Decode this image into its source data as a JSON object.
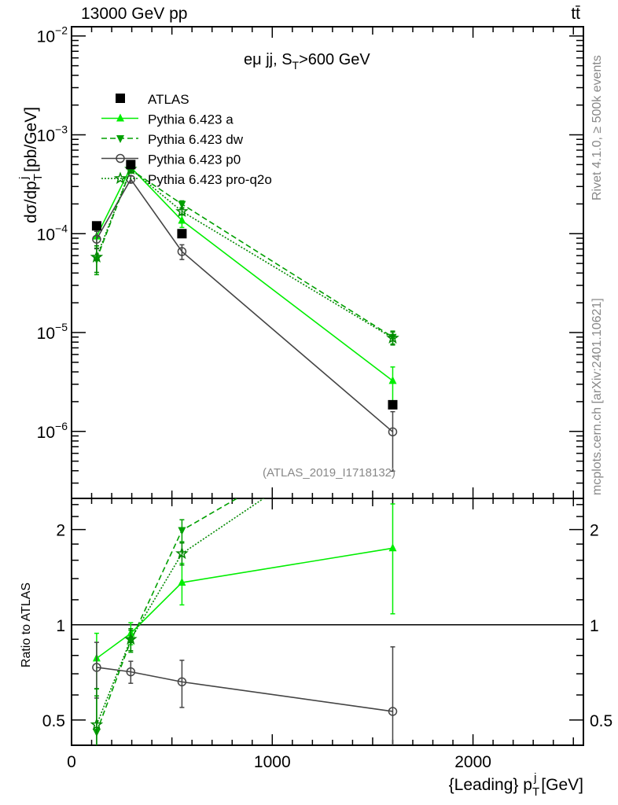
{
  "header": {
    "left": "13000 GeV pp",
    "right": "tt̄"
  },
  "side_text": {
    "top": "Rivet 4.1.0, ≥ 500k events",
    "bottom": "mcplots.cern.ch [arXiv:2401.10621]"
  },
  "chart_data": {
    "type": "line",
    "title": "eμ jj, S_T>600 GeV",
    "title_parts": {
      "main": "eμ jj, S",
      "sub": "T",
      "rest": ">600 GeV"
    },
    "analysis_label": "(ATLAS_2019_I1718132)",
    "ylabel_parts": {
      "main": "dσ/dp",
      "sub": "T",
      "sup": "j",
      "rest": " [pb/GeV]"
    },
    "ratio_ylabel": "Ratio to ATLAS",
    "xlabel_parts": {
      "main": "{Leading} p",
      "sub": "T",
      "sup": "j",
      "rest": " [GeV]"
    },
    "xlim": [
      0,
      2550
    ],
    "ylim": [
      2.1e-07,
      0.0124
    ],
    "yscale": "log",
    "ratio_ylim": [
      0.416,
      2.51
    ],
    "ratio_yscale": "log",
    "x": [
      125,
      295,
      550,
      1600
    ],
    "x_ticks": [
      0,
      1000,
      2000
    ],
    "x_tick_labels": [
      "0",
      "1000",
      "2000"
    ],
    "y_ticks": [
      0.01,
      0.001,
      0.0001,
      1e-05,
      1e-06
    ],
    "y_tick_labels": [
      {
        "b": "10",
        "e": "−2"
      },
      {
        "b": "10",
        "e": "−3"
      },
      {
        "b": "10",
        "e": "−4"
      },
      {
        "b": "10",
        "e": "−5"
      },
      {
        "b": "10",
        "e": "−6"
      }
    ],
    "ratio_y_ticks": [
      0.5,
      1,
      2
    ],
    "ratio_y_tick_labels": [
      "0.5",
      "1",
      "2"
    ],
    "legend_position": "top-left",
    "data": {
      "name": "ATLAS",
      "values": [
        0.00012,
        0.0005,
        0.0001,
        1.86e-06
      ],
      "color": "#000000"
    },
    "series": [
      {
        "name": "Pythia 6.423 a",
        "values": [
          9.4e-05,
          0.00047,
          0.000136,
          3.25e-06
        ],
        "rel_err": [
          0.2,
          0.08,
          0.15,
          0.38
        ],
        "color": "#00ee00",
        "dash": "",
        "marker": "triangle-up"
      },
      {
        "name": "Pythia 6.423 dw",
        "values": [
          5.5e-05,
          0.000445,
          0.000199,
          9e-06
        ],
        "rel_err": [
          0.3,
          0.08,
          0.08,
          0.15
        ],
        "color": "#00a000",
        "dash": "7,4",
        "marker": "triangle-down"
      },
      {
        "name": "Pythia 6.423 p0",
        "values": [
          8.8e-05,
          0.000355,
          6.6e-05,
          9.9e-07
        ],
        "rel_err": [
          0.2,
          0.08,
          0.17,
          0.6
        ],
        "color": "#444444",
        "dash": "",
        "marker": "circle-open"
      },
      {
        "name": "Pythia 6.423 pro-q2o",
        "values": [
          5.8e-05,
          0.00045,
          0.000168,
          8.8e-06
        ],
        "rel_err": [
          0.3,
          0.08,
          0.08,
          0.15
        ],
        "color": "#008800",
        "dash": "2,2",
        "marker": "star-open"
      }
    ]
  }
}
